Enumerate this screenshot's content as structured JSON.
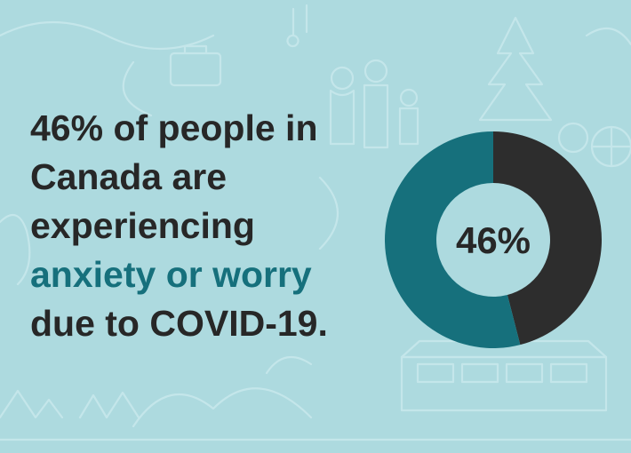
{
  "headline": {
    "line1": "46% of people in",
    "line2": "Canada are",
    "line3": "experiencing",
    "line4_accent": "anxiety or worry",
    "line5": "due to COVID-19."
  },
  "colors": {
    "background": "#addadf",
    "text": "#272727",
    "accent": "#16707c",
    "segment_primary": "#2d2d2d",
    "segment_remainder": "#16707c"
  },
  "chart_data": {
    "type": "pie",
    "variant": "donut",
    "center_label": "46%",
    "slices": [
      {
        "value": 46,
        "color": "#2d2d2d"
      },
      {
        "value": 54,
        "color": "#16707c"
      }
    ]
  }
}
